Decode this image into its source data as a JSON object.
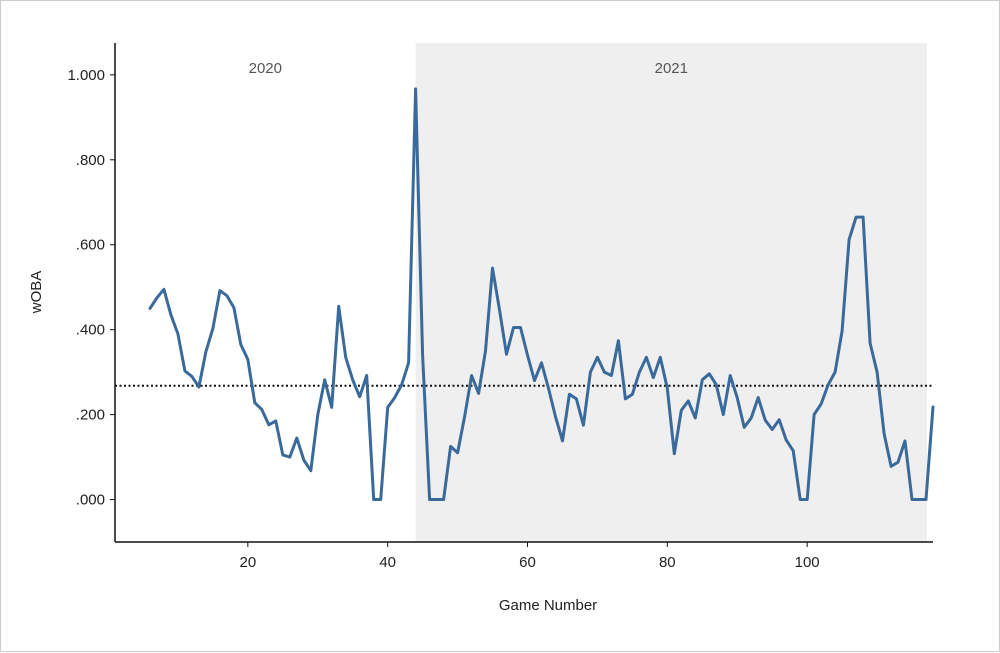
{
  "chart_data": {
    "type": "line",
    "title": "",
    "xlabel": "Game Number",
    "ylabel": "wOBA",
    "xlim": [
      1,
      118
    ],
    "ylim": [
      -0.1,
      1.075
    ],
    "x_ticks": [
      20,
      40,
      60,
      80,
      100
    ],
    "x_tick_labels": [
      "20",
      "40",
      "60",
      "80",
      "100"
    ],
    "y_ticks": [
      0,
      0.2,
      0.4,
      0.6,
      0.8,
      1.0
    ],
    "y_tick_labels": [
      ".000",
      ".200",
      ".400",
      ".600",
      ".800",
      "1.000"
    ],
    "grid": false,
    "regions": [
      {
        "label": "2020",
        "x_start": 1,
        "x_end": 44,
        "color": "#ffffff"
      },
      {
        "label": "2021",
        "x_start": 44,
        "x_end": 118,
        "color": "#efefef"
      }
    ],
    "reference_line": {
      "y": 0.268,
      "style": "dotted",
      "color": "#111111"
    },
    "series": [
      {
        "color": "#3a6a9b",
        "x": [
          6,
          7,
          8,
          9,
          10,
          11,
          12,
          13,
          14,
          15,
          16,
          17,
          18,
          19,
          20,
          21,
          22,
          23,
          24,
          25,
          26,
          27,
          28,
          29,
          30,
          31,
          32,
          33,
          34,
          35,
          36,
          37,
          38,
          39,
          40,
          41,
          42,
          43,
          44,
          45,
          46,
          47,
          48,
          49,
          50,
          51,
          52,
          53,
          54,
          55,
          56,
          57,
          58,
          59,
          60,
          61,
          62,
          63,
          64,
          65,
          66,
          67,
          68,
          69,
          70,
          71,
          72,
          73,
          74,
          75,
          76,
          77,
          78,
          79,
          80,
          81,
          82,
          83,
          84,
          85,
          86,
          87,
          88,
          89,
          90,
          91,
          92,
          93,
          94,
          95,
          96,
          97,
          98,
          99,
          100,
          101,
          102,
          103,
          104,
          105,
          106,
          107,
          108,
          109,
          110,
          111,
          112,
          113,
          114,
          115,
          116,
          117,
          118
        ],
        "values": [
          0.45,
          0.475,
          0.495,
          0.435,
          0.39,
          0.303,
          0.29,
          0.265,
          0.348,
          0.403,
          0.492,
          0.48,
          0.452,
          0.365,
          0.33,
          0.228,
          0.212,
          0.176,
          0.185,
          0.105,
          0.1,
          0.145,
          0.093,
          0.068,
          0.2,
          0.282,
          0.217,
          0.455,
          0.335,
          0.282,
          0.242,
          0.292,
          0.0,
          0.0,
          0.217,
          0.24,
          0.27,
          0.322,
          0.967,
          0.34,
          0.0,
          0.0,
          0.0,
          0.125,
          0.11,
          0.195,
          0.292,
          0.25,
          0.35,
          0.545,
          0.447,
          0.342,
          0.405,
          0.405,
          0.34,
          0.28,
          0.322,
          0.262,
          0.195,
          0.138,
          0.248,
          0.237,
          0.175,
          0.3,
          0.335,
          0.3,
          0.292,
          0.374,
          0.237,
          0.248,
          0.3,
          0.335,
          0.287,
          0.335,
          0.262,
          0.108,
          0.21,
          0.232,
          0.192,
          0.282,
          0.296,
          0.27,
          0.2,
          0.292,
          0.24,
          0.17,
          0.192,
          0.24,
          0.187,
          0.165,
          0.188,
          0.14,
          0.115,
          0.0,
          0.0,
          0.2,
          0.225,
          0.27,
          0.3,
          0.397,
          0.612,
          0.665,
          0.665,
          0.368,
          0.3,
          0.155,
          0.078,
          0.088,
          0.138,
          0.0,
          0.0,
          0.0,
          0.218
        ]
      }
    ]
  }
}
